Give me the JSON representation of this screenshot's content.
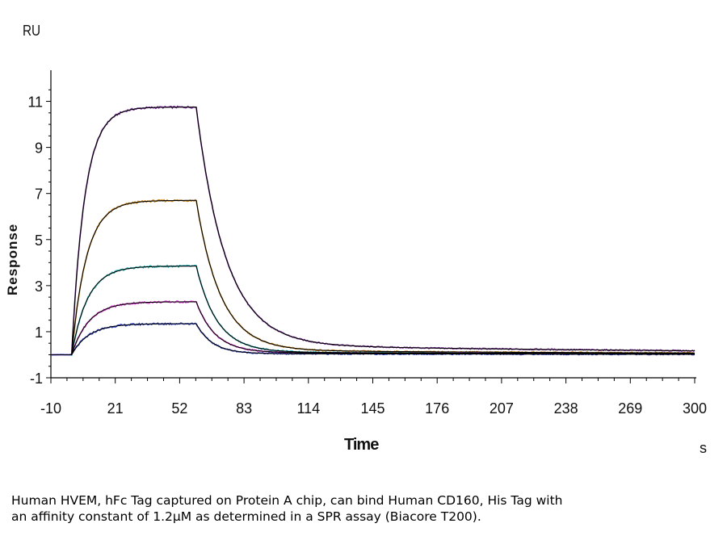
{
  "chart_data": {
    "type": "line",
    "title": "",
    "ylabel": "Response",
    "y_unit": "RU",
    "xlabel": "Time",
    "x_unit": "s",
    "xlim": [
      -10,
      300
    ],
    "ylim": [
      -1,
      12
    ],
    "x_ticks": [
      -10,
      21,
      52,
      83,
      114,
      145,
      176,
      207,
      238,
      269,
      300
    ],
    "x_tick_labels": [
      "-10",
      "21",
      "52",
      "83",
      "114",
      "145",
      "176",
      "207",
      "238",
      "269",
      "300"
    ],
    "y_ticks": [
      -1,
      1,
      3,
      5,
      7,
      9,
      11
    ],
    "y_tick_labels": [
      "-1",
      "1",
      "3",
      "5",
      "7",
      "9",
      "11"
    ],
    "grid": false,
    "legend": "none",
    "injection_start_s": 0,
    "injection_end_s": 60,
    "series": [
      {
        "color": "#7b2c9c",
        "plateau": 10.75,
        "ka": 0.16,
        "kd_fast": 0.07,
        "residual": 0.45
      },
      {
        "color": "#cc8a1f",
        "plateau": 6.7,
        "ka": 0.14,
        "kd_fast": 0.085,
        "residual": 0.2
      },
      {
        "color": "#27b6b8",
        "plateau": 3.85,
        "ka": 0.13,
        "kd_fast": 0.1,
        "residual": 0.12
      },
      {
        "color": "#e03ad6",
        "plateau": 2.3,
        "ka": 0.12,
        "kd_fast": 0.11,
        "residual": 0.1
      },
      {
        "color": "#2f43c9",
        "plateau": 1.35,
        "ka": 0.12,
        "kd_fast": 0.13,
        "residual": 0.05
      }
    ],
    "fit_color": "#000000"
  },
  "caption": {
    "line1": "Human HVEM, hFc Tag captured on Protein A chip, can bind Human CD160, His Tag with",
    "line2": "an affinity constant of 1.2μM as determined in a SPR assay (Biacore T200)."
  },
  "labels": {
    "ru": "RU",
    "time": "Time",
    "response": "Response",
    "s": "s"
  }
}
